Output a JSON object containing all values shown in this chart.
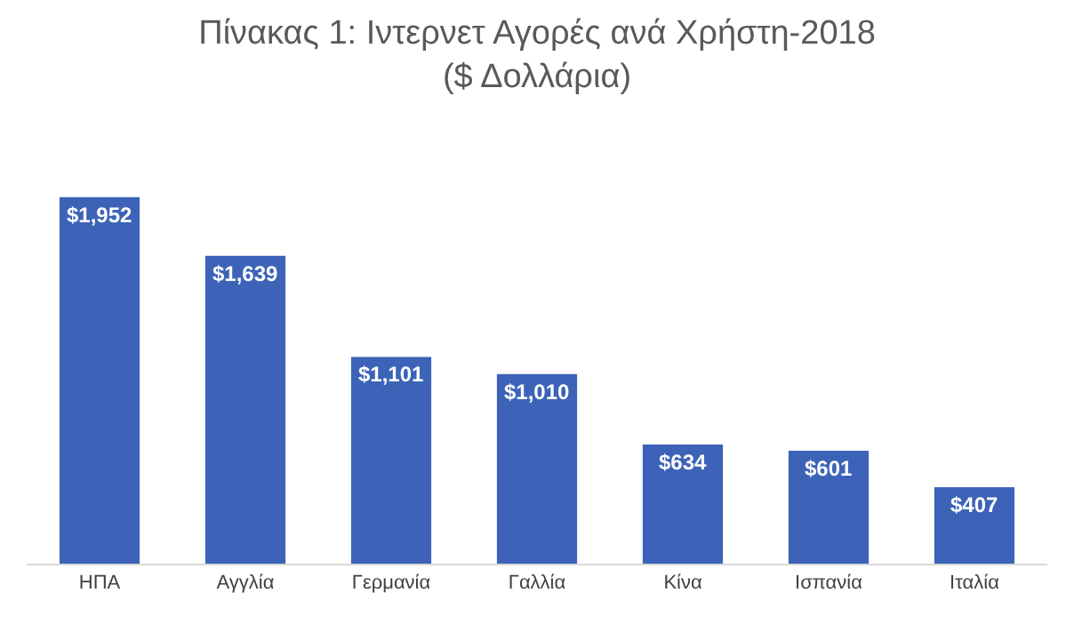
{
  "chart_data": {
    "type": "bar",
    "title": "Πίνακας 1: Ιντερνετ Αγορές ανά Χρήστη-2018",
    "subtitle": "($ Δολλάρια)",
    "categories": [
      "ΗΠΑ",
      "Αγγλία",
      "Γερμανία",
      "Γαλλία",
      "Κίνα",
      "Ισπανία",
      "Ιταλία"
    ],
    "values": [
      1952,
      1639,
      1101,
      1010,
      634,
      601,
      407
    ],
    "value_labels": [
      "$1,952",
      "$1,639",
      "$1,101",
      "$1,010",
      "$634",
      "$601",
      "$407"
    ],
    "color": "#3c63b8",
    "grid": false,
    "legend": false
  }
}
